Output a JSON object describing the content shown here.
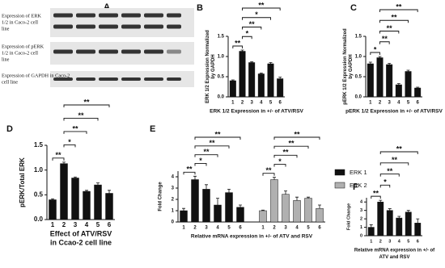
{
  "chart_data": [
    {
      "type": "blot",
      "title": "A",
      "row_labels": [
        [
          "Expression of ERK",
          "1/2 in  Caco-2 cell",
          "line"
        ],
        [
          "Expression of pERK",
          "1/2 in Caco-2 cell",
          "line"
        ],
        [
          "Expression of GAPDH in Caco-2",
          "cell line"
        ]
      ]
    },
    {
      "type": "bar",
      "title": "B",
      "ylabel": [
        "ERK 1/2 Expression Normalized",
        "by GAPDH"
      ],
      "xlabel": [
        "ERK 1/2  Expression in +/- of ATV/RSV"
      ],
      "categories": [
        "1",
        "2",
        "3",
        "4",
        "5",
        "6"
      ],
      "values": [
        0.4,
        1.13,
        0.85,
        0.57,
        0.82,
        0.45
      ],
      "errors": [
        0.02,
        0.03,
        0.02,
        0.02,
        0.03,
        0.04
      ],
      "color": "#111111",
      "ylim": [
        0,
        1.5
      ],
      "yticks": [
        {
          "value": 0,
          "label": "0.0"
        },
        {
          "value": 0.5,
          "label": "0.5"
        },
        {
          "value": 1,
          "label": "1.0"
        },
        {
          "value": 1.5,
          "label": "1.5"
        }
      ],
      "annotations": [
        {
          "text": "**",
          "from": "1",
          "to": "2"
        },
        {
          "text": "*",
          "from": "2",
          "to": "3"
        },
        {
          "text": "**",
          "from": "2",
          "to": "4"
        },
        {
          "text": "*",
          "from": "2",
          "to": "5"
        },
        {
          "text": "**",
          "from": "2",
          "to": "6"
        }
      ]
    },
    {
      "type": "bar",
      "title": "C",
      "ylabel": [
        "pERK 1/2 Expression Normalized",
        "by GAPDH"
      ],
      "xlabel": [
        "pERK 1/2 Expression in +/- of ATV/RSV"
      ],
      "categories": [
        "1",
        "2",
        "3",
        "4",
        "5",
        "6"
      ],
      "values": [
        0.82,
        0.97,
        0.8,
        0.3,
        0.63,
        0.22
      ],
      "errors": [
        0.04,
        0.03,
        0.03,
        0.03,
        0.03,
        0.02
      ],
      "color": "#111111",
      "ylim": [
        0,
        1.5
      ],
      "yticks": [
        {
          "value": 0,
          "label": "0.0"
        },
        {
          "value": 0.5,
          "label": "0.5"
        },
        {
          "value": 1,
          "label": "1.0"
        },
        {
          "value": 1.5,
          "label": "1.5"
        }
      ],
      "annotations": [
        {
          "text": "*",
          "from": "1",
          "to": "2"
        },
        {
          "text": "**",
          "from": "2",
          "to": "3"
        },
        {
          "text": "**",
          "from": "2",
          "to": "4"
        },
        {
          "text": "**",
          "from": "2",
          "to": "5"
        },
        {
          "text": "**",
          "from": "2",
          "to": "6"
        }
      ]
    },
    {
      "type": "bar",
      "title": "D",
      "ylabel": [
        "pERK/Total ERK"
      ],
      "xlabel": [
        "Effect of ATV/RSV",
        "in Ccao-2 cell line"
      ],
      "categories": [
        "1",
        "2",
        "3",
        "4",
        "5",
        "6"
      ],
      "values": [
        0.4,
        1.13,
        0.84,
        0.57,
        0.7,
        0.53
      ],
      "errors": [
        0.02,
        0.03,
        0.02,
        0.02,
        0.04,
        0.06
      ],
      "color": "#111111",
      "ylim": [
        0,
        1.5
      ],
      "yticks": [
        {
          "value": 0,
          "label": "0.0"
        },
        {
          "value": 0.5,
          "label": "0.5"
        },
        {
          "value": 1,
          "label": "1.0"
        },
        {
          "value": 1.5,
          "label": "1.5"
        }
      ],
      "annotations": [
        {
          "text": "**",
          "from": "1",
          "to": "2"
        },
        {
          "text": "*",
          "from": "2",
          "to": "3"
        },
        {
          "text": "**",
          "from": "2",
          "to": "4"
        },
        {
          "text": "**",
          "from": "2",
          "to": "5"
        },
        {
          "text": "**",
          "from": "2",
          "to": "6"
        }
      ]
    },
    {
      "type": "bar",
      "title": "E",
      "ylabel": [
        "Fold Change"
      ],
      "xlabel": [
        "Relative mRNA expression in +/- of ATV and RSV"
      ],
      "categories": [
        "1",
        "2",
        "3",
        "4",
        "5",
        "6"
      ],
      "ylim": [
        0,
        4.5
      ],
      "yticks": [
        0,
        1,
        2,
        3,
        4
      ],
      "series": [
        {
          "name": "ERK 1",
          "color": "#111111",
          "values": [
            1.0,
            3.75,
            2.9,
            1.5,
            2.6,
            1.3
          ],
          "errors": [
            0.2,
            0.3,
            0.4,
            0.6,
            0.3,
            0.2
          ],
          "annotations": [
            {
              "text": "**",
              "from": "1",
              "to": "2"
            },
            {
              "text": "*",
              "from": "2",
              "to": "3"
            },
            {
              "text": "**",
              "from": "2",
              "to": "4"
            },
            {
              "text": "**",
              "from": "2",
              "to": "5"
            },
            {
              "text": "**",
              "from": "2",
              "to": "6"
            }
          ]
        },
        {
          "name": "ERK 2",
          "color": "#b0b0b0",
          "values": [
            1.0,
            3.75,
            2.45,
            1.9,
            2.1,
            1.2
          ],
          "errors": [
            0.05,
            0.2,
            0.3,
            0.3,
            0.1,
            0.3
          ],
          "annotations": [
            {
              "text": "**",
              "from": "1",
              "to": "2"
            },
            {
              "text": "*",
              "from": "2",
              "to": "3"
            },
            {
              "text": "**",
              "from": "2",
              "to": "4"
            },
            {
              "text": "**",
              "from": "2",
              "to": "5"
            },
            {
              "text": "**",
              "from": "2",
              "to": "6"
            }
          ]
        }
      ]
    },
    {
      "type": "bar",
      "title": "F",
      "ylabel": [
        "Fold Change"
      ],
      "xlabel": [
        "Relative mRNA expression in +/- of",
        "ATV and RSV"
      ],
      "categories": [
        "1",
        "2",
        "3",
        "4",
        "5",
        "6"
      ],
      "values": [
        1.0,
        4.0,
        3.0,
        2.1,
        2.8,
        1.5
      ],
      "errors": [
        0.3,
        0.2,
        0.2,
        0.2,
        0.2,
        0.5
      ],
      "color": "#111111",
      "ylim": [
        0,
        4.5
      ],
      "yticks": [
        0,
        1,
        2,
        3,
        4
      ],
      "annotations": [
        {
          "text": "**",
          "from": "1",
          "to": "2"
        },
        {
          "text": "*",
          "from": "2",
          "to": "3"
        },
        {
          "text": "**",
          "from": "2",
          "to": "4"
        },
        {
          "text": "**",
          "from": "2",
          "to": "5"
        },
        {
          "text": "**",
          "from": "2",
          "to": "6"
        }
      ]
    }
  ]
}
